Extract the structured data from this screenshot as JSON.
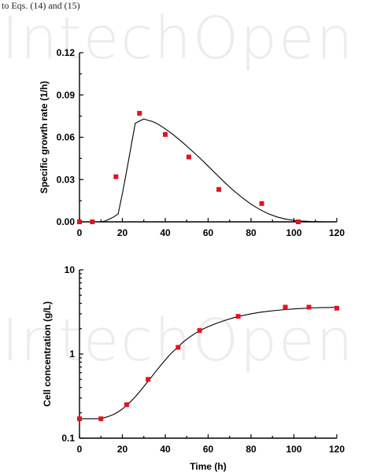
{
  "page": {
    "header_text": "to Eqs. (14) and (15)",
    "watermark": "IntechOpen"
  },
  "colors": {
    "marker": "#e0141e",
    "line": "#000000",
    "watermark": "#ececec"
  },
  "chart_data": [
    {
      "type": "scatter",
      "title": "",
      "xlabel": "",
      "ylabel": "Specific growth rate (1/h)",
      "xlim": [
        0,
        120
      ],
      "ylim": [
        0,
        0.12
      ],
      "xticks": [
        0,
        20,
        40,
        60,
        80,
        100,
        120
      ],
      "yticks": [
        0.0,
        0.03,
        0.06,
        0.09,
        0.12
      ],
      "xtick_labels": [
        "0",
        "20",
        "40",
        "60",
        "80",
        "100",
        "120"
      ],
      "ytick_labels": [
        "0.00",
        "0.03",
        "0.06",
        "0.09",
        "0.12"
      ],
      "grid": false,
      "series": [
        {
          "kind": "scatter",
          "color": "#e0141e",
          "x": [
            0,
            6,
            17,
            28,
            40,
            51,
            65,
            85,
            102
          ],
          "y": [
            0.0,
            0.0,
            0.032,
            0.077,
            0.062,
            0.046,
            0.023,
            0.013,
            0.0
          ]
        },
        {
          "kind": "line",
          "color": "#000000",
          "x": [
            0,
            8,
            10,
            12,
            14,
            16,
            18,
            20,
            22,
            24,
            26,
            28,
            30,
            32,
            34,
            36,
            38,
            40,
            44,
            48,
            52,
            56,
            60,
            64,
            68,
            72,
            76,
            80,
            84,
            88,
            92,
            96,
            100,
            104,
            108,
            112,
            116
          ],
          "y": [
            0.0,
            0.0,
            0.0,
            0.0006,
            0.002,
            0.0035,
            0.0055,
            0.02,
            0.036,
            0.053,
            0.07,
            0.0715,
            0.073,
            0.072,
            0.0712,
            0.0698,
            0.068,
            0.066,
            0.0615,
            0.0565,
            0.051,
            0.0455,
            0.0395,
            0.0335,
            0.0275,
            0.022,
            0.017,
            0.0125,
            0.0088,
            0.0058,
            0.0035,
            0.002,
            0.001,
            0.0005,
            0.0002,
            0.0001,
            0.0
          ]
        }
      ]
    },
    {
      "type": "scatter",
      "title": "",
      "xlabel": "Time (h)",
      "ylabel": "Cell concentration (g/L)",
      "xlim": [
        0,
        120
      ],
      "ylim": [
        0.1,
        10
      ],
      "yscale": "log",
      "xticks": [
        0,
        20,
        40,
        60,
        80,
        100,
        120
      ],
      "yticks": [
        0.1,
        1,
        10
      ],
      "xtick_labels": [
        "0",
        "20",
        "40",
        "60",
        "80",
        "100",
        "120"
      ],
      "ytick_labels": [
        "0.1",
        "1",
        "10"
      ],
      "grid": false,
      "series": [
        {
          "kind": "scatter",
          "color": "#e0141e",
          "x": [
            0,
            10,
            22,
            32,
            46,
            56,
            74,
            96,
            107,
            120
          ],
          "y": [
            0.17,
            0.17,
            0.25,
            0.5,
            1.2,
            1.9,
            2.8,
            3.6,
            3.6,
            3.5
          ]
        },
        {
          "kind": "line",
          "color": "#000000",
          "x": [
            0,
            8,
            10,
            12,
            14,
            16,
            18,
            20,
            22,
            24,
            26,
            28,
            30,
            32,
            34,
            36,
            38,
            40,
            42,
            44,
            46,
            48,
            50,
            52,
            54,
            56,
            58,
            60,
            64,
            68,
            72,
            76,
            80,
            84,
            88,
            92,
            96,
            100,
            104,
            108,
            112,
            116,
            120
          ],
          "y": [
            0.17,
            0.17,
            0.172,
            0.176,
            0.183,
            0.192,
            0.205,
            0.222,
            0.245,
            0.274,
            0.31,
            0.355,
            0.41,
            0.475,
            0.55,
            0.64,
            0.74,
            0.85,
            0.97,
            1.09,
            1.22,
            1.36,
            1.5,
            1.63,
            1.76,
            1.88,
            2.0,
            2.11,
            2.32,
            2.52,
            2.7,
            2.86,
            3.0,
            3.12,
            3.22,
            3.3,
            3.37,
            3.43,
            3.48,
            3.52,
            3.55,
            3.57,
            3.59
          ]
        }
      ]
    }
  ]
}
